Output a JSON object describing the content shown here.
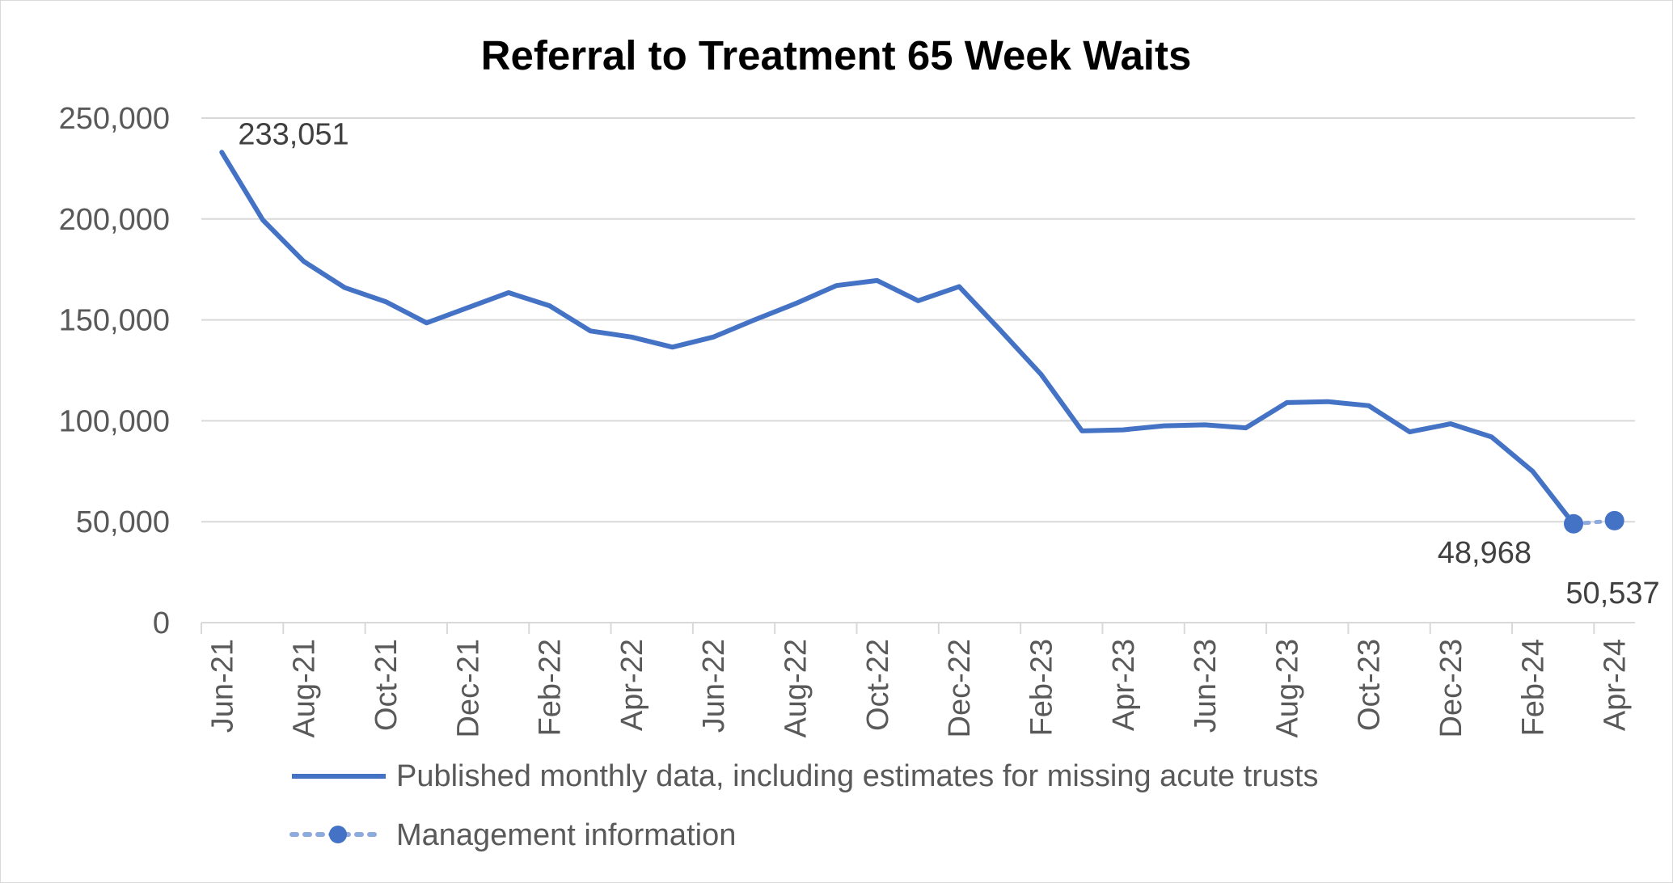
{
  "chart_data": {
    "type": "line",
    "title": "Referral to Treatment 65 Week Waits",
    "xlabel": "",
    "ylabel": "",
    "ylim": [
      0,
      250000
    ],
    "y_ticks": [
      0,
      50000,
      100000,
      150000,
      200000,
      250000
    ],
    "y_tick_labels": [
      "0",
      "50,000",
      "100,000",
      "150,000",
      "200,000",
      "250,000"
    ],
    "grid": true,
    "legend_position": "bottom",
    "x_tick_labels": [
      "Jun-21",
      "Aug-21",
      "Oct-21",
      "Dec-21",
      "Feb-22",
      "Apr-22",
      "Jun-22",
      "Aug-22",
      "Oct-22",
      "Dec-22",
      "Feb-23",
      "Apr-23",
      "Jun-23",
      "Aug-23",
      "Oct-23",
      "Dec-23",
      "Feb-24",
      "Apr-24"
    ],
    "categories": [
      "Jun-21",
      "Jul-21",
      "Aug-21",
      "Sep-21",
      "Oct-21",
      "Nov-21",
      "Dec-21",
      "Jan-22",
      "Feb-22",
      "Mar-22",
      "Apr-22",
      "May-22",
      "Jun-22",
      "Jul-22",
      "Aug-22",
      "Sep-22",
      "Oct-22",
      "Nov-22",
      "Dec-22",
      "Jan-23",
      "Feb-23",
      "Mar-23",
      "Apr-23",
      "May-23",
      "Jun-23",
      "Jul-23",
      "Aug-23",
      "Sep-23",
      "Oct-23",
      "Nov-23",
      "Dec-23",
      "Jan-24",
      "Feb-24",
      "Mar-24",
      "Apr-24"
    ],
    "series": [
      {
        "name": "Published monthly data, including estimates for missing acute trusts",
        "color": "#4472c4",
        "style": "solid",
        "values": [
          233051,
          199500,
          179000,
          166000,
          159000,
          148500,
          156000,
          163500,
          157000,
          144500,
          141500,
          136500,
          141500,
          150000,
          158000,
          167000,
          169500,
          159500,
          166500,
          145000,
          123000,
          95000,
          95500,
          97500,
          98000,
          96500,
          109000,
          109500,
          107500,
          94500,
          98500,
          92000,
          75000,
          48968,
          null
        ]
      },
      {
        "name": "Management information",
        "color": "#4472c4",
        "style": "dotted-markers",
        "values": [
          null,
          null,
          null,
          null,
          null,
          null,
          null,
          null,
          null,
          null,
          null,
          null,
          null,
          null,
          null,
          null,
          null,
          null,
          null,
          null,
          null,
          null,
          null,
          null,
          null,
          null,
          null,
          null,
          null,
          null,
          null,
          null,
          null,
          48968,
          50537
        ]
      }
    ],
    "annotations": [
      {
        "category": "Jun-21",
        "value": 233051,
        "text": "233,051"
      },
      {
        "category": "Mar-24",
        "value": 48968,
        "text": "48,968"
      },
      {
        "category": "Apr-24",
        "value": 50537,
        "text": "50,537"
      }
    ]
  }
}
